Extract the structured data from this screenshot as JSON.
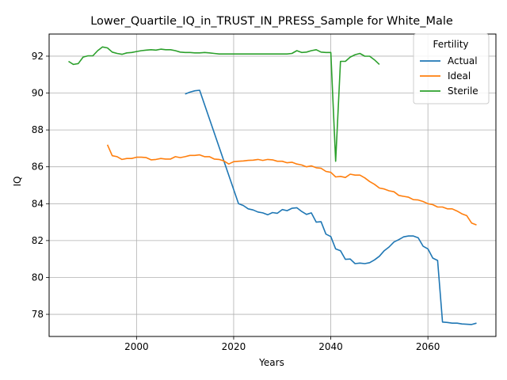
{
  "chart_data": {
    "type": "line",
    "title": "Lower_Quartile_IQ_in_TRUST_IN_PRESS_Sample for White_Male",
    "xlabel": "Years",
    "ylabel": "IQ",
    "xlim": [
      1982,
      2074
    ],
    "ylim": [
      76.8,
      93.2
    ],
    "xticks": [
      2000,
      2020,
      2040,
      2060
    ],
    "yticks": [
      78,
      80,
      82,
      84,
      86,
      88,
      90,
      92
    ],
    "grid": true,
    "legend": {
      "title": "Fertility",
      "placement": "top-right"
    },
    "series": [
      {
        "name": "Actual",
        "color": "#1f77b4",
        "points": [
          [
            2010,
            89.95
          ],
          [
            2011,
            90.05
          ],
          [
            2012,
            90.12
          ],
          [
            2013,
            90.15
          ],
          [
            2021,
            84.0
          ],
          [
            2022,
            83.9
          ],
          [
            2023,
            83.72
          ],
          [
            2024,
            83.66
          ],
          [
            2025,
            83.55
          ],
          [
            2026,
            83.5
          ],
          [
            2027,
            83.4
          ],
          [
            2028,
            83.52
          ],
          [
            2029,
            83.48
          ],
          [
            2030,
            83.68
          ],
          [
            2031,
            83.62
          ],
          [
            2032,
            83.75
          ],
          [
            2033,
            83.78
          ],
          [
            2034,
            83.58
          ],
          [
            2035,
            83.42
          ],
          [
            2036,
            83.5
          ],
          [
            2037,
            83.0
          ],
          [
            2038,
            83.02
          ],
          [
            2039,
            82.35
          ],
          [
            2040,
            82.22
          ],
          [
            2041,
            81.55
          ],
          [
            2042,
            81.45
          ],
          [
            2043,
            80.98
          ],
          [
            2044,
            81.0
          ],
          [
            2045,
            80.75
          ],
          [
            2046,
            80.78
          ],
          [
            2047,
            80.75
          ],
          [
            2048,
            80.8
          ],
          [
            2049,
            80.95
          ],
          [
            2050,
            81.15
          ],
          [
            2051,
            81.45
          ],
          [
            2052,
            81.65
          ],
          [
            2053,
            81.92
          ],
          [
            2054,
            82.05
          ],
          [
            2055,
            82.2
          ],
          [
            2056,
            82.25
          ],
          [
            2057,
            82.25
          ],
          [
            2058,
            82.15
          ],
          [
            2059,
            81.7
          ],
          [
            2060,
            81.55
          ],
          [
            2061,
            81.05
          ],
          [
            2062,
            80.92
          ],
          [
            2063,
            77.58
          ],
          [
            2064,
            77.56
          ],
          [
            2065,
            77.52
          ],
          [
            2066,
            77.52
          ],
          [
            2067,
            77.48
          ],
          [
            2068,
            77.46
          ],
          [
            2069,
            77.45
          ],
          [
            2070,
            77.52
          ]
        ]
      },
      {
        "name": "Ideal",
        "color": "#ff7f0e",
        "points": [
          [
            1994,
            87.2
          ],
          [
            1995,
            86.6
          ],
          [
            1996,
            86.55
          ],
          [
            1997,
            86.4
          ],
          [
            1998,
            86.45
          ],
          [
            1999,
            86.45
          ],
          [
            2000,
            86.52
          ],
          [
            2001,
            86.52
          ],
          [
            2002,
            86.5
          ],
          [
            2003,
            86.38
          ],
          [
            2004,
            86.4
          ],
          [
            2005,
            86.45
          ],
          [
            2006,
            86.42
          ],
          [
            2007,
            86.42
          ],
          [
            2008,
            86.55
          ],
          [
            2009,
            86.5
          ],
          [
            2010,
            86.55
          ],
          [
            2011,
            86.62
          ],
          [
            2012,
            86.62
          ],
          [
            2013,
            86.65
          ],
          [
            2014,
            86.55
          ],
          [
            2015,
            86.55
          ],
          [
            2016,
            86.42
          ],
          [
            2017,
            86.4
          ],
          [
            2018,
            86.32
          ],
          [
            2019,
            86.15
          ],
          [
            2020,
            86.28
          ],
          [
            2021,
            86.3
          ],
          [
            2022,
            86.32
          ],
          [
            2023,
            86.35
          ],
          [
            2024,
            86.36
          ],
          [
            2025,
            86.4
          ],
          [
            2026,
            86.35
          ],
          [
            2027,
            86.4
          ],
          [
            2028,
            86.38
          ],
          [
            2029,
            86.3
          ],
          [
            2030,
            86.3
          ],
          [
            2031,
            86.22
          ],
          [
            2032,
            86.25
          ],
          [
            2033,
            86.15
          ],
          [
            2034,
            86.1
          ],
          [
            2035,
            86.0
          ],
          [
            2036,
            86.05
          ],
          [
            2037,
            85.95
          ],
          [
            2038,
            85.92
          ],
          [
            2039,
            85.75
          ],
          [
            2040,
            85.7
          ],
          [
            2041,
            85.45
          ],
          [
            2042,
            85.48
          ],
          [
            2043,
            85.42
          ],
          [
            2044,
            85.6
          ],
          [
            2045,
            85.55
          ],
          [
            2046,
            85.55
          ],
          [
            2047,
            85.4
          ],
          [
            2048,
            85.2
          ],
          [
            2049,
            85.05
          ],
          [
            2050,
            84.85
          ],
          [
            2051,
            84.8
          ],
          [
            2052,
            84.7
          ],
          [
            2053,
            84.65
          ],
          [
            2054,
            84.45
          ],
          [
            2055,
            84.4
          ],
          [
            2056,
            84.35
          ],
          [
            2057,
            84.22
          ],
          [
            2058,
            84.2
          ],
          [
            2059,
            84.12
          ],
          [
            2060,
            84.0
          ],
          [
            2061,
            83.95
          ],
          [
            2062,
            83.82
          ],
          [
            2063,
            83.82
          ],
          [
            2064,
            83.72
          ],
          [
            2065,
            83.72
          ],
          [
            2066,
            83.6
          ],
          [
            2067,
            83.45
          ],
          [
            2068,
            83.35
          ],
          [
            2069,
            82.95
          ],
          [
            2070,
            82.85
          ]
        ]
      },
      {
        "name": "Sterile",
        "color": "#2ca02c",
        "points": [
          [
            1986,
            91.72
          ],
          [
            1987,
            91.55
          ],
          [
            1988,
            91.6
          ],
          [
            1989,
            91.95
          ],
          [
            1990,
            92.02
          ],
          [
            1991,
            92.02
          ],
          [
            1992,
            92.3
          ],
          [
            1993,
            92.5
          ],
          [
            1994,
            92.45
          ],
          [
            1995,
            92.22
          ],
          [
            1996,
            92.15
          ],
          [
            1997,
            92.1
          ],
          [
            1998,
            92.18
          ],
          [
            1999,
            92.2
          ],
          [
            2000,
            92.25
          ],
          [
            2001,
            92.3
          ],
          [
            2002,
            92.33
          ],
          [
            2003,
            92.35
          ],
          [
            2004,
            92.33
          ],
          [
            2005,
            92.38
          ],
          [
            2006,
            92.35
          ],
          [
            2007,
            92.35
          ],
          [
            2008,
            92.3
          ],
          [
            2009,
            92.22
          ],
          [
            2010,
            92.2
          ],
          [
            2011,
            92.2
          ],
          [
            2012,
            92.18
          ],
          [
            2013,
            92.18
          ],
          [
            2014,
            92.2
          ],
          [
            2015,
            92.18
          ],
          [
            2016,
            92.15
          ],
          [
            2017,
            92.12
          ],
          [
            2018,
            92.12
          ],
          [
            2020,
            92.12
          ],
          [
            2025,
            92.12
          ],
          [
            2030,
            92.12
          ],
          [
            2031,
            92.12
          ],
          [
            2032,
            92.15
          ],
          [
            2033,
            92.3
          ],
          [
            2034,
            92.2
          ],
          [
            2035,
            92.22
          ],
          [
            2036,
            92.3
          ],
          [
            2037,
            92.35
          ],
          [
            2038,
            92.22
          ],
          [
            2039,
            92.2
          ],
          [
            2040,
            92.2
          ],
          [
            2041,
            86.3
          ],
          [
            2042,
            91.72
          ],
          [
            2043,
            91.72
          ],
          [
            2044,
            91.95
          ],
          [
            2045,
            92.08
          ],
          [
            2046,
            92.15
          ],
          [
            2047,
            92.0
          ],
          [
            2048,
            92.0
          ],
          [
            2049,
            91.8
          ],
          [
            2050,
            91.55
          ]
        ]
      }
    ]
  }
}
